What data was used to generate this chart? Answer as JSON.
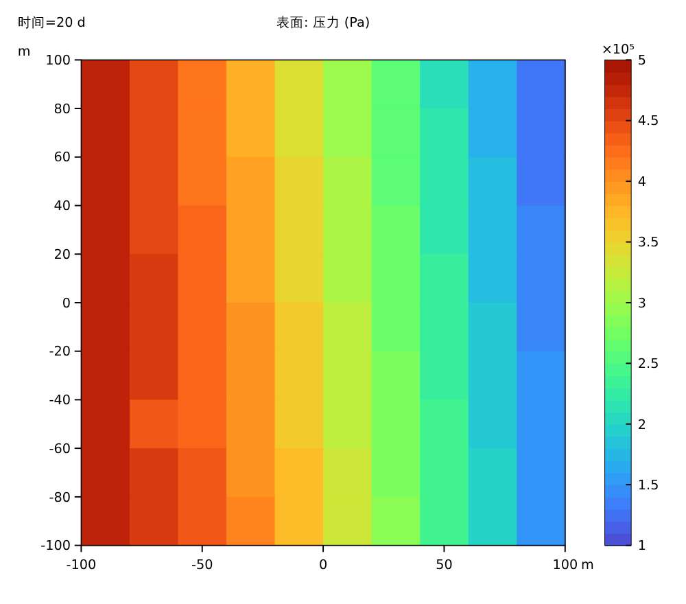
{
  "chart_data": {
    "type": "heatmap",
    "title": "表面: 压力 (Pa)",
    "annotations": [
      "时间=20 d"
    ],
    "xlabel": "m",
    "ylabel": "m",
    "clabel": "×10⁵",
    "xlim": [
      -100,
      100
    ],
    "xticks": [
      -100,
      -50,
      0,
      50,
      100
    ],
    "ylim": [
      -100,
      100
    ],
    "yticks": [
      -100,
      -80,
      -60,
      -40,
      -20,
      0,
      20,
      40,
      60,
      80,
      100
    ],
    "clim": [
      1,
      5
    ],
    "cticks": [
      1,
      1.5,
      2,
      2.5,
      3,
      3.5,
      4,
      4.5,
      5
    ],
    "cells": [
      [
        4.8,
        4.5,
        4.2,
        3.8,
        3.4,
        3.0,
        2.6,
        2.1,
        1.7,
        1.3
      ],
      [
        4.8,
        4.5,
        4.2,
        3.8,
        3.4,
        3.0,
        2.6,
        2.2,
        1.7,
        1.3
      ],
      [
        4.8,
        4.5,
        4.2,
        3.9,
        3.5,
        3.1,
        2.6,
        2.2,
        1.8,
        1.3
      ],
      [
        4.8,
        4.5,
        4.3,
        3.9,
        3.5,
        3.1,
        2.7,
        2.2,
        1.8,
        1.4
      ],
      [
        4.8,
        4.6,
        4.3,
        3.9,
        3.5,
        3.1,
        2.7,
        2.3,
        1.8,
        1.4
      ],
      [
        4.8,
        4.6,
        4.3,
        4.0,
        3.6,
        3.2,
        2.7,
        2.3,
        1.9,
        1.4
      ],
      [
        4.8,
        4.6,
        4.3,
        4.0,
        3.6,
        3.2,
        2.8,
        2.3,
        1.9,
        1.5
      ],
      [
        4.8,
        4.4,
        4.3,
        4.0,
        3.6,
        3.2,
        2.8,
        2.4,
        1.9,
        1.5
      ],
      [
        4.8,
        4.6,
        4.4,
        4.0,
        3.7,
        3.3,
        2.8,
        2.4,
        2.0,
        1.5
      ],
      [
        4.8,
        4.6,
        4.4,
        4.1,
        3.7,
        3.3,
        2.9,
        2.4,
        2.0,
        1.5
      ]
    ]
  }
}
